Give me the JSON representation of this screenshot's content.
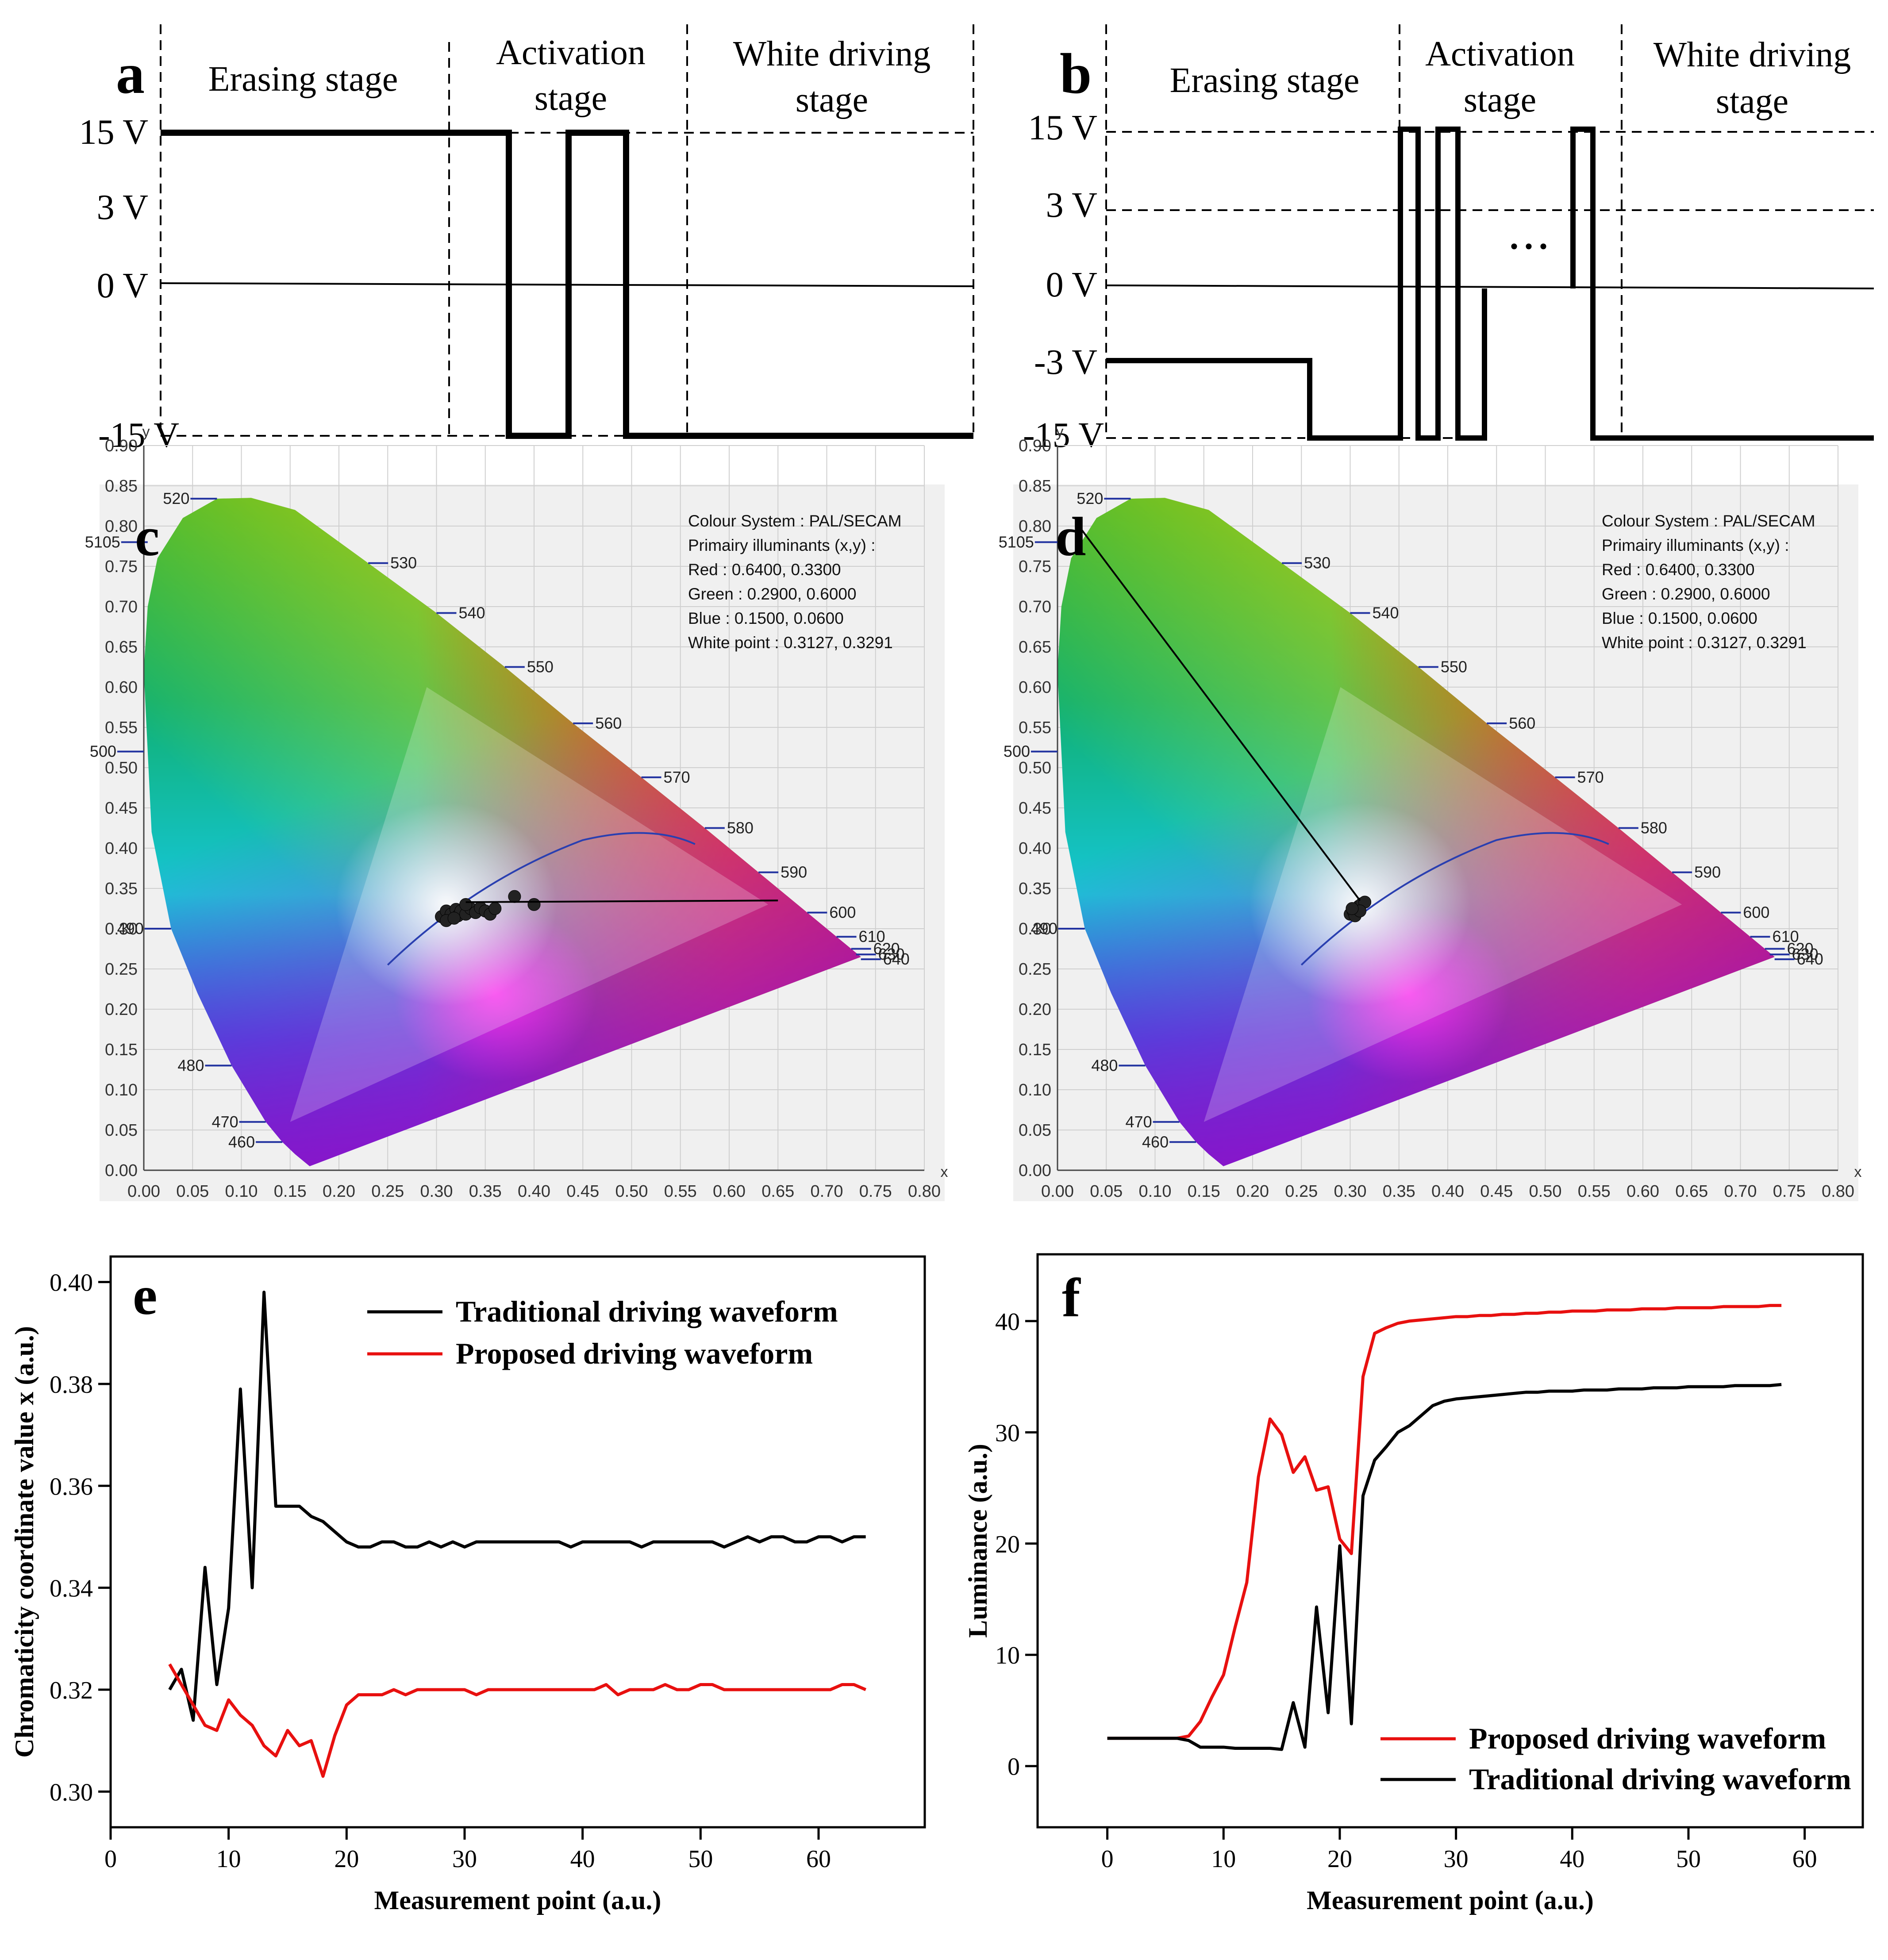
{
  "panels": {
    "a": "a",
    "b": "b",
    "c": "c",
    "d": "d",
    "e": "e",
    "f": "f"
  },
  "waveform_a": {
    "stage1": "Erasing stage",
    "stage2": [
      "Activation",
      "stage"
    ],
    "stage3": [
      "White driving",
      "stage"
    ],
    "volt_labels": [
      "15 V",
      "3 V",
      "0 V",
      "-15 V"
    ]
  },
  "waveform_b": {
    "stage1": "Erasing stage",
    "stage2": [
      "Activation",
      "stage"
    ],
    "stage3": [
      "White driving",
      "stage"
    ],
    "volt_labels": [
      "15 V",
      "3 V",
      "0 V",
      "-3 V",
      "-15 V"
    ],
    "ellipsis": "• • •"
  },
  "cie": {
    "axis_y_label": "y",
    "axis_x_label": "x",
    "x_ticks": [
      "0.00",
      "0.05",
      "0.10",
      "0.15",
      "0.20",
      "0.25",
      "0.30",
      "0.35",
      "0.40",
      "0.45",
      "0.50",
      "0.55",
      "0.60",
      "0.65",
      "0.70",
      "0.75",
      "0.80"
    ],
    "y_ticks": [
      "0.00",
      "0.05",
      "0.10",
      "0.15",
      "0.20",
      "0.25",
      "0.30",
      "0.35",
      "0.40",
      "0.45",
      "0.50",
      "0.55",
      "0.60",
      "0.65",
      "0.70",
      "0.75",
      "0.80",
      "0.85",
      "0.90"
    ],
    "info": [
      "Colour System : PAL/SECAM",
      "Primairy illuminants (x,y) :",
      "Red : 0.6400, 0.3300",
      "Green : 0.2900, 0.6000",
      "Blue : 0.1500, 0.0600",
      "White point  : 0.3127, 0.3291"
    ],
    "wavelengths": [
      "460",
      "470",
      "480",
      "490",
      "500",
      "510",
      "520",
      "530",
      "540",
      "550",
      "560",
      "570",
      "580",
      "590",
      "600",
      "610",
      "620",
      "630",
      "640"
    ],
    "left_labels": [
      "520",
      "5105",
      "500",
      "490",
      "480",
      "470",
      "460"
    ],
    "right_labels": [
      "530",
      "540",
      "550",
      "560",
      "570",
      "580",
      "590",
      "600",
      "610",
      "620",
      "630",
      "640"
    ]
  },
  "chart_data": [
    {
      "type": "line",
      "panel": "e",
      "xlabel": "Measurement point (a.u.)",
      "ylabel": "Chromaticity coordinate value x (a.u.)",
      "xlim": [
        0,
        69
      ],
      "ylim": [
        0.293,
        0.405
      ],
      "x_ticks": [
        "0",
        "10",
        "20",
        "30",
        "40",
        "50",
        "60"
      ],
      "y_ticks": [
        "0.30",
        "0.32",
        "0.34",
        "0.36",
        "0.38",
        "0.40"
      ],
      "series": [
        {
          "name": "Traditional driving waveform",
          "color": "#000000",
          "x": [
            5,
            6,
            7,
            8,
            9,
            10,
            11,
            12,
            13,
            14,
            15,
            16,
            17,
            18,
            19,
            20,
            21,
            22,
            23,
            24,
            25,
            26,
            27,
            28,
            29,
            30,
            31,
            32,
            33,
            34,
            35,
            36,
            37,
            38,
            39,
            40,
            41,
            42,
            43,
            44,
            45,
            46,
            47,
            48,
            49,
            50,
            51,
            52,
            53,
            54,
            55,
            56,
            57,
            58,
            59,
            60,
            61,
            62,
            63,
            64
          ],
          "values": [
            0.32,
            0.324,
            0.314,
            0.344,
            0.321,
            0.336,
            0.379,
            0.34,
            0.398,
            0.356,
            0.356,
            0.356,
            0.354,
            0.353,
            0.351,
            0.349,
            0.348,
            0.348,
            0.349,
            0.349,
            0.348,
            0.348,
            0.349,
            0.348,
            0.349,
            0.348,
            0.349,
            0.349,
            0.349,
            0.349,
            0.349,
            0.349,
            0.349,
            0.349,
            0.348,
            0.349,
            0.349,
            0.349,
            0.349,
            0.349,
            0.348,
            0.349,
            0.349,
            0.349,
            0.349,
            0.349,
            0.349,
            0.348,
            0.349,
            0.35,
            0.349,
            0.35,
            0.35,
            0.349,
            0.349,
            0.35,
            0.35,
            0.349,
            0.35,
            0.35
          ]
        },
        {
          "name": "Proposed driving waveform",
          "color": "#e8100f",
          "x": [
            5,
            6,
            7,
            8,
            9,
            10,
            11,
            12,
            13,
            14,
            15,
            16,
            17,
            18,
            19,
            20,
            21,
            22,
            23,
            24,
            25,
            26,
            27,
            28,
            29,
            30,
            31,
            32,
            33,
            34,
            35,
            36,
            37,
            38,
            39,
            40,
            41,
            42,
            43,
            44,
            45,
            46,
            47,
            48,
            49,
            50,
            51,
            52,
            53,
            54,
            55,
            56,
            57,
            58,
            59,
            60,
            61,
            62,
            63,
            64
          ],
          "values": [
            0.325,
            0.321,
            0.317,
            0.313,
            0.312,
            0.318,
            0.315,
            0.313,
            0.309,
            0.307,
            0.312,
            0.309,
            0.31,
            0.303,
            0.311,
            0.317,
            0.319,
            0.319,
            0.319,
            0.32,
            0.319,
            0.32,
            0.32,
            0.32,
            0.32,
            0.32,
            0.319,
            0.32,
            0.32,
            0.32,
            0.32,
            0.32,
            0.32,
            0.32,
            0.32,
            0.32,
            0.32,
            0.321,
            0.319,
            0.32,
            0.32,
            0.32,
            0.321,
            0.32,
            0.32,
            0.321,
            0.321,
            0.32,
            0.32,
            0.32,
            0.32,
            0.32,
            0.32,
            0.32,
            0.32,
            0.32,
            0.32,
            0.321,
            0.321,
            0.32
          ]
        }
      ]
    },
    {
      "type": "line",
      "panel": "f",
      "xlabel": "Measurement point (a.u.)",
      "ylabel": "Luminance (a.u.)",
      "xlim": [
        -6,
        65
      ],
      "ylim": [
        -5.5,
        46
      ],
      "x_ticks": [
        "0",
        "10",
        "20",
        "30",
        "40",
        "50",
        "60"
      ],
      "y_ticks": [
        "0",
        "10",
        "20",
        "30",
        "40"
      ],
      "series": [
        {
          "name": "Proposed driving waveform",
          "color": "#e8100f",
          "x": [
            0,
            1,
            2,
            3,
            4,
            5,
            6,
            7,
            8,
            9,
            10,
            11,
            12,
            13,
            14,
            15,
            16,
            17,
            18,
            19,
            20,
            21,
            22,
            23,
            24,
            25,
            26,
            27,
            28,
            29,
            30,
            31,
            32,
            33,
            34,
            35,
            36,
            37,
            38,
            39,
            40,
            41,
            42,
            43,
            44,
            45,
            46,
            47,
            48,
            49,
            50,
            51,
            52,
            53,
            54,
            55,
            56,
            57,
            58
          ],
          "values": [
            2.5,
            2.5,
            2.5,
            2.5,
            2.5,
            2.5,
            2.5,
            2.7,
            4.0,
            6.2,
            8.2,
            12.5,
            16.5,
            26.0,
            31.2,
            29.8,
            26.4,
            27.8,
            24.8,
            25.1,
            20.4,
            19.1,
            35.0,
            38.9,
            39.4,
            39.8,
            40.0,
            40.1,
            40.2,
            40.3,
            40.4,
            40.4,
            40.5,
            40.5,
            40.6,
            40.6,
            40.7,
            40.7,
            40.8,
            40.8,
            40.9,
            40.9,
            40.9,
            41.0,
            41.0,
            41.0,
            41.1,
            41.1,
            41.1,
            41.2,
            41.2,
            41.2,
            41.2,
            41.3,
            41.3,
            41.3,
            41.3,
            41.4,
            41.4
          ]
        },
        {
          "name": "Traditional driving waveform",
          "color": "#000000",
          "x": [
            0,
            1,
            2,
            3,
            4,
            5,
            6,
            7,
            8,
            9,
            10,
            11,
            12,
            13,
            14,
            15,
            16,
            17,
            18,
            19,
            20,
            21,
            22,
            23,
            24,
            25,
            26,
            27,
            28,
            29,
            30,
            31,
            32,
            33,
            34,
            35,
            36,
            37,
            38,
            39,
            40,
            41,
            42,
            43,
            44,
            45,
            46,
            47,
            48,
            49,
            50,
            51,
            52,
            53,
            54,
            55,
            56,
            57,
            58
          ],
          "values": [
            2.5,
            2.5,
            2.5,
            2.5,
            2.5,
            2.5,
            2.5,
            2.3,
            1.7,
            1.7,
            1.7,
            1.6,
            1.6,
            1.6,
            1.6,
            1.5,
            5.7,
            1.7,
            14.3,
            4.8,
            19.8,
            3.8,
            24.3,
            27.5,
            28.7,
            30.0,
            30.6,
            31.5,
            32.4,
            32.8,
            33.0,
            33.1,
            33.2,
            33.3,
            33.4,
            33.5,
            33.6,
            33.6,
            33.7,
            33.7,
            33.7,
            33.8,
            33.8,
            33.8,
            33.9,
            33.9,
            33.9,
            34.0,
            34.0,
            34.0,
            34.1,
            34.1,
            34.1,
            34.1,
            34.2,
            34.2,
            34.2,
            34.2,
            34.3
          ]
        }
      ]
    }
  ]
}
